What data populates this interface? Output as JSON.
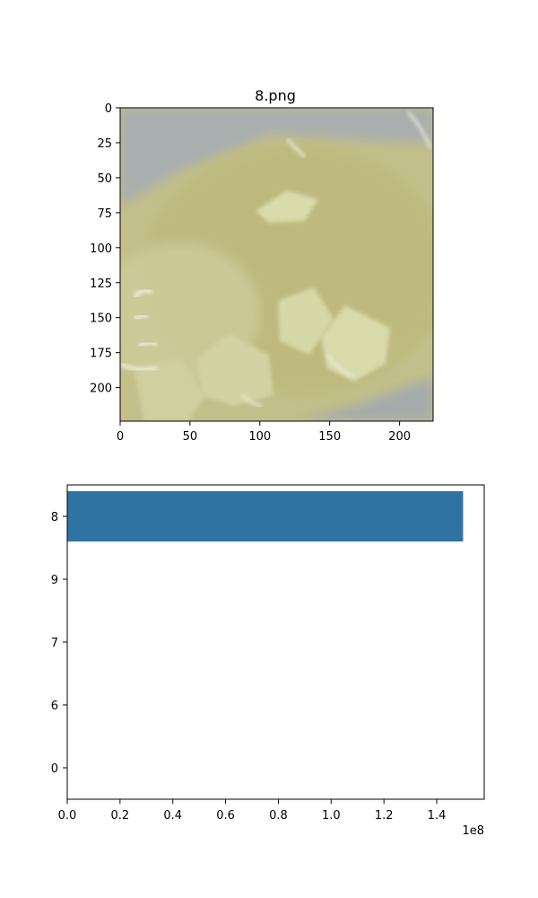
{
  "image_panel": {
    "title": "8.png",
    "x_ticks": [
      "0",
      "50",
      "100",
      "150",
      "200"
    ],
    "y_ticks": [
      "0",
      "25",
      "50",
      "75",
      "100",
      "125",
      "150",
      "175",
      "200"
    ],
    "x_tick_values": [
      0,
      50,
      100,
      150,
      200
    ],
    "y_tick_values": [
      0,
      25,
      50,
      75,
      100,
      125,
      150,
      175,
      200
    ],
    "extent": [
      0,
      224
    ],
    "colors": {
      "food_base": "#c8c48e",
      "bowl_rim": "#a7acac",
      "broth": "#b9b47a",
      "potato": "#d7d8a8"
    }
  },
  "chart_data": {
    "type": "bar",
    "orientation": "horizontal",
    "categories": [
      "8",
      "9",
      "7",
      "6",
      "0"
    ],
    "values": [
      150000000,
      0,
      0,
      0,
      0
    ],
    "title": "",
    "xlabel": "",
    "ylabel": "",
    "xlim": [
      0,
      158000000
    ],
    "x_ticks": [
      0,
      20000000,
      40000000,
      60000000,
      80000000,
      100000000,
      120000000,
      140000000
    ],
    "x_tick_labels": [
      "0.0",
      "0.2",
      "0.4",
      "0.6",
      "0.8",
      "1.0",
      "1.2",
      "1.4"
    ],
    "offset_label": "1e8",
    "bar_color": "#2f73a3",
    "grid": false,
    "legend": "none"
  }
}
